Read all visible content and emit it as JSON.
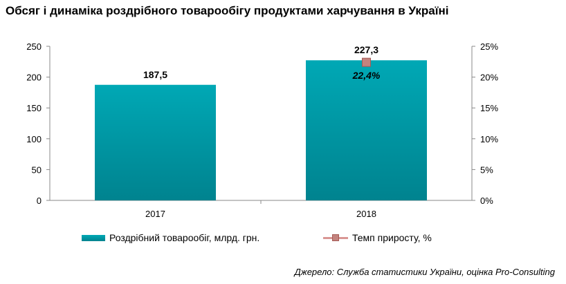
{
  "title": "Обсяг і динаміка роздрібного товарообігу продуктами харчування в Україні",
  "source": "Джерело: Служба статистики України, оцінка Pro-Consulting",
  "legend": {
    "bar_label": "Роздрібний товарообіг, млрд. грн.",
    "line_label": "Темп приросту, %"
  },
  "chart_data": {
    "type": "bar",
    "categories": [
      "2017",
      "2018"
    ],
    "series": [
      {
        "name": "Роздрібний товарообіг, млрд. грн.",
        "values": [
          187.5,
          227.3
        ],
        "labels": [
          "187,5",
          "227,3"
        ],
        "axis": "left"
      },
      {
        "name": "Темп приросту, %",
        "values": [
          null,
          22.4
        ],
        "labels": [
          "",
          "22,4%"
        ],
        "axis": "right",
        "style": "line-marker"
      }
    ],
    "y_left": {
      "ylim": [
        0,
        250
      ],
      "ticks": [
        "0",
        "50",
        "100",
        "150",
        "200",
        "250"
      ]
    },
    "y_right": {
      "ylim": [
        0,
        25
      ],
      "ticks": [
        "0%",
        "5%",
        "10%",
        "15%",
        "20%",
        "25%"
      ]
    },
    "grid": false,
    "legend_position": "bottom"
  },
  "colors": {
    "bar_top": "#00a8b5",
    "bar_bottom": "#00838f",
    "marker": "#c3837e",
    "axis": "#888888"
  }
}
